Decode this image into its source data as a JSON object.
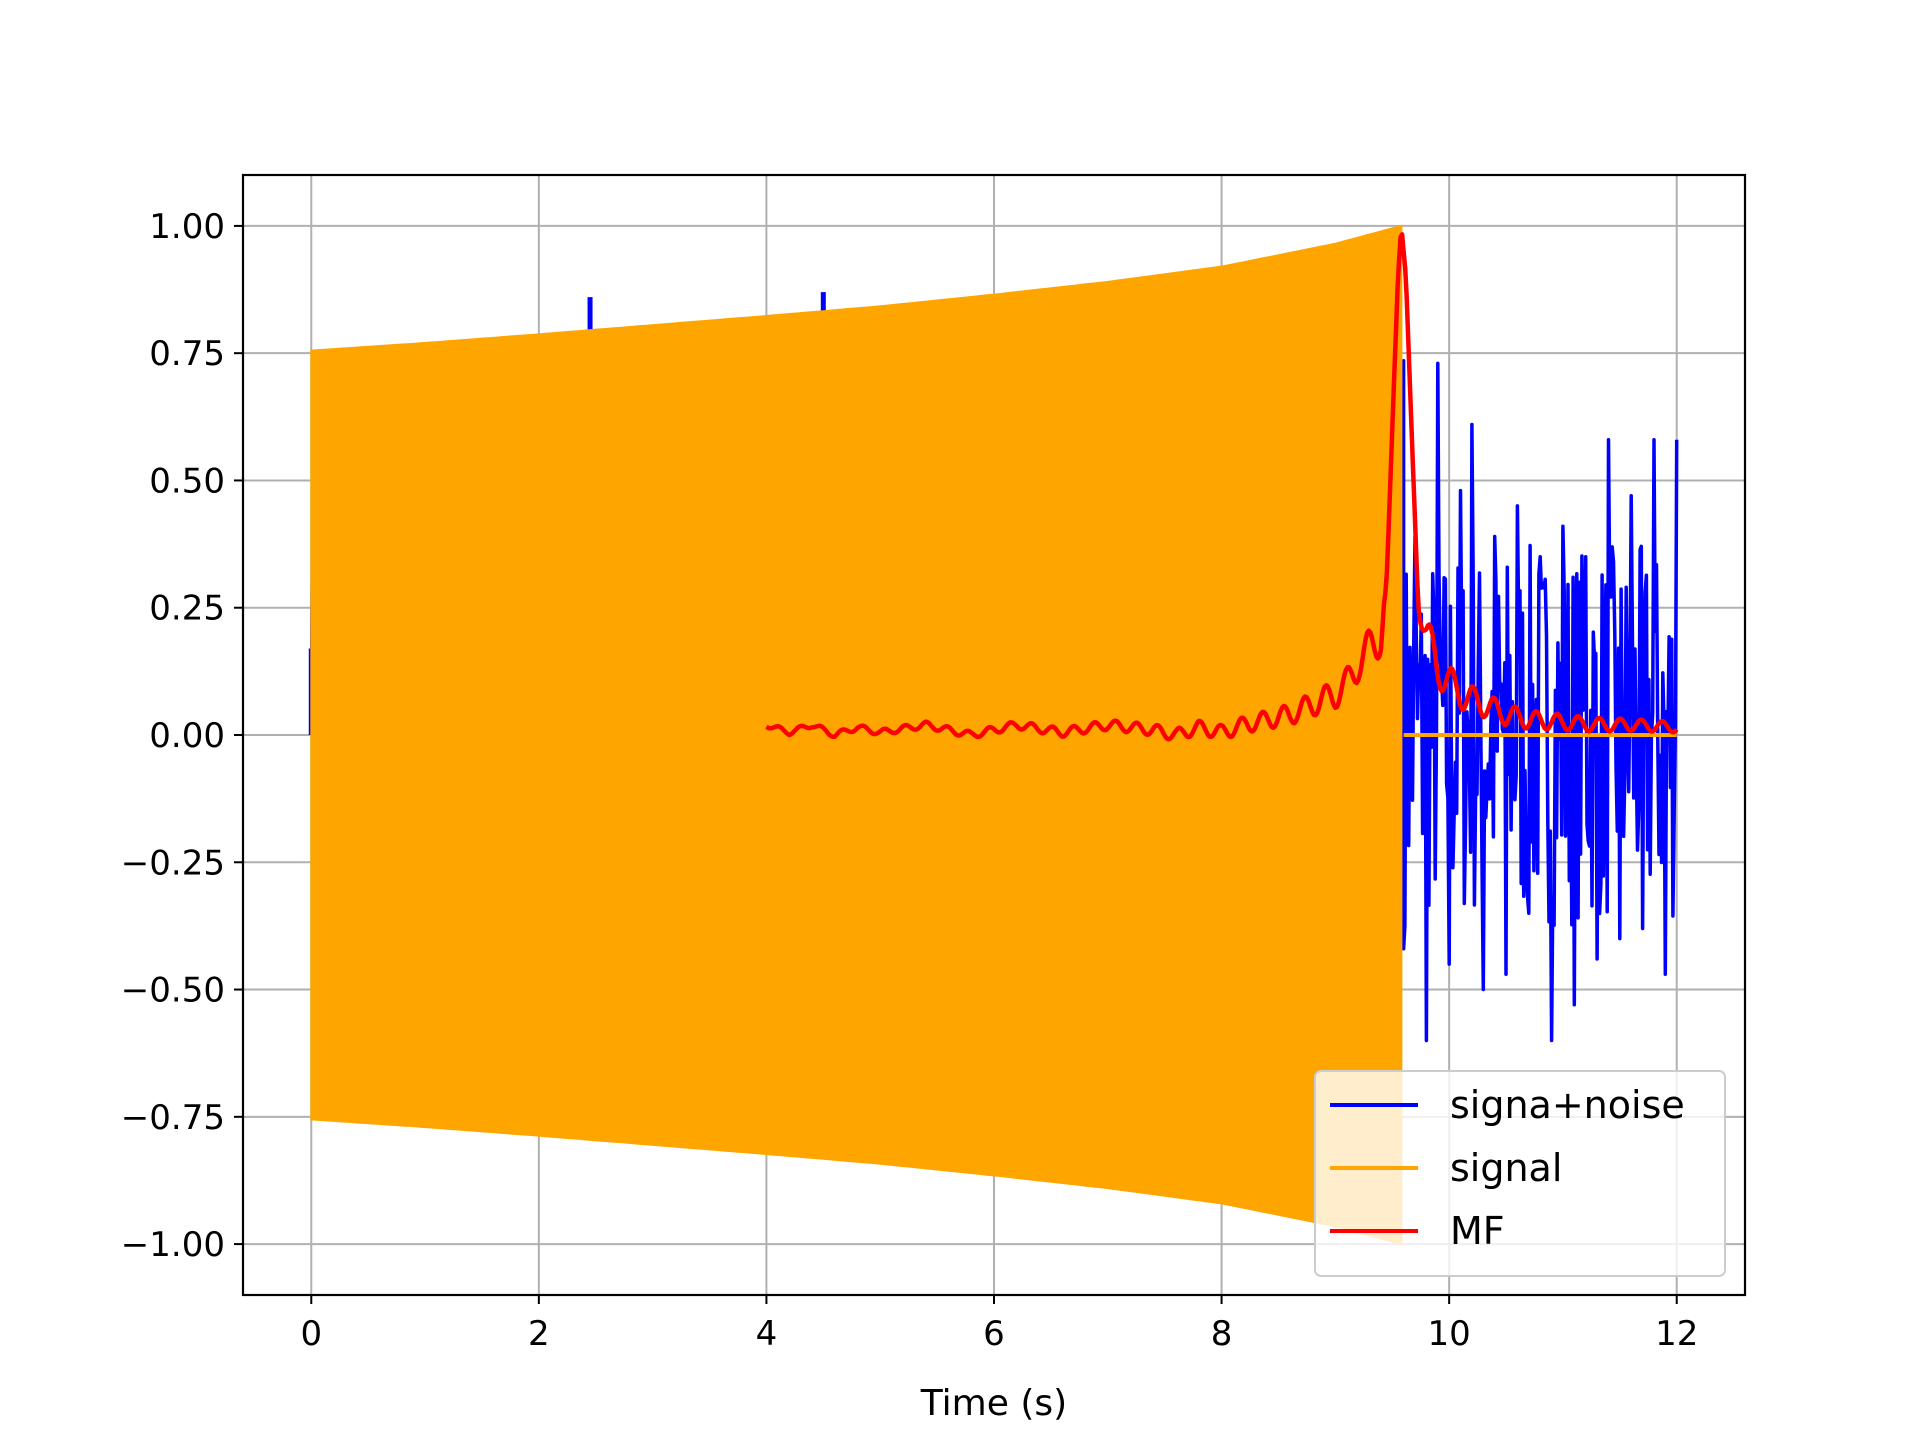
{
  "chart_data": {
    "type": "line",
    "title": "",
    "xlabel": "Time (s)",
    "ylabel": "",
    "xlim": [
      -0.6,
      12.6
    ],
    "ylim": [
      -1.1,
      1.1
    ],
    "xticks": [
      0,
      2,
      4,
      6,
      8,
      10,
      12
    ],
    "xtick_labels": [
      "0",
      "2",
      "4",
      "6",
      "8",
      "10",
      "12"
    ],
    "yticks": [
      1.0,
      0.75,
      0.5,
      0.25,
      0.0,
      -0.25,
      -0.5,
      -0.75,
      -1.0
    ],
    "ytick_labels": [
      "1.00",
      "0.75",
      "0.50",
      "0.25",
      "0.00",
      "−0.25",
      "−0.50",
      "−0.75",
      "−1.00"
    ],
    "grid": true,
    "legend_position": "lower-right",
    "series": [
      {
        "name": "signa+noise",
        "color": "#0000ff",
        "x": [
          0,
          2.45,
          4.5,
          9.6,
          9.7,
          9.8,
          9.9,
          10.0,
          10.1,
          10.2,
          10.3,
          10.4,
          10.5,
          10.6,
          10.7,
          10.8,
          10.9,
          11.0,
          11.1,
          11.2,
          11.3,
          11.4,
          11.5,
          11.6,
          11.7,
          11.8,
          11.9,
          12.0
        ],
        "y": [
          0.17,
          0.86,
          0.87,
          -0.42,
          0.39,
          -0.6,
          0.73,
          -0.45,
          0.48,
          0.61,
          -0.5,
          0.39,
          -0.47,
          0.45,
          -0.35,
          0.35,
          -0.6,
          0.41,
          -0.53,
          0.35,
          -0.44,
          0.58,
          -0.4,
          0.47,
          -0.38,
          0.58,
          -0.47,
          0.58
        ]
      },
      {
        "name": "signal",
        "color": "#ffa500",
        "x": [
          0,
          1,
          2,
          3,
          4,
          5,
          6,
          7,
          8,
          9,
          9.58,
          9.6,
          12.0
        ],
        "envelope": [
          0.755,
          0.77,
          0.787,
          0.805,
          0.823,
          0.842,
          0.865,
          0.89,
          0.92,
          0.965,
          1.0,
          0.0,
          0.0
        ]
      },
      {
        "name": "MF",
        "color": "#ff0000",
        "x": [
          4.0,
          4.2,
          4.4,
          4.6,
          4.8,
          5.0,
          5.4,
          5.8,
          6.2,
          6.6,
          7.0,
          7.4,
          7.6,
          7.8,
          8.0,
          8.2,
          8.4,
          8.6,
          8.8,
          9.0,
          9.1,
          9.2,
          9.3,
          9.4,
          9.45,
          9.5,
          9.55,
          9.58,
          9.62,
          9.67,
          9.72,
          9.8,
          9.9,
          10.1,
          10.3,
          10.5,
          10.7,
          11.0,
          11.3,
          11.6,
          12.0
        ],
        "y": [
          0.02,
          0.005,
          0.02,
          0.0,
          0.015,
          0.005,
          0.02,
          0.0,
          0.02,
          0.005,
          0.02,
          0.01,
          0.0,
          0.015,
          0.005,
          0.02,
          0.03,
          0.04,
          0.06,
          0.08,
          0.1,
          0.14,
          0.17,
          0.2,
          0.3,
          0.6,
          0.9,
          1.0,
          0.9,
          0.6,
          0.3,
          0.2,
          0.13,
          0.08,
          0.06,
          0.04,
          0.03,
          0.025,
          0.02,
          0.02,
          0.015
        ]
      }
    ]
  }
}
